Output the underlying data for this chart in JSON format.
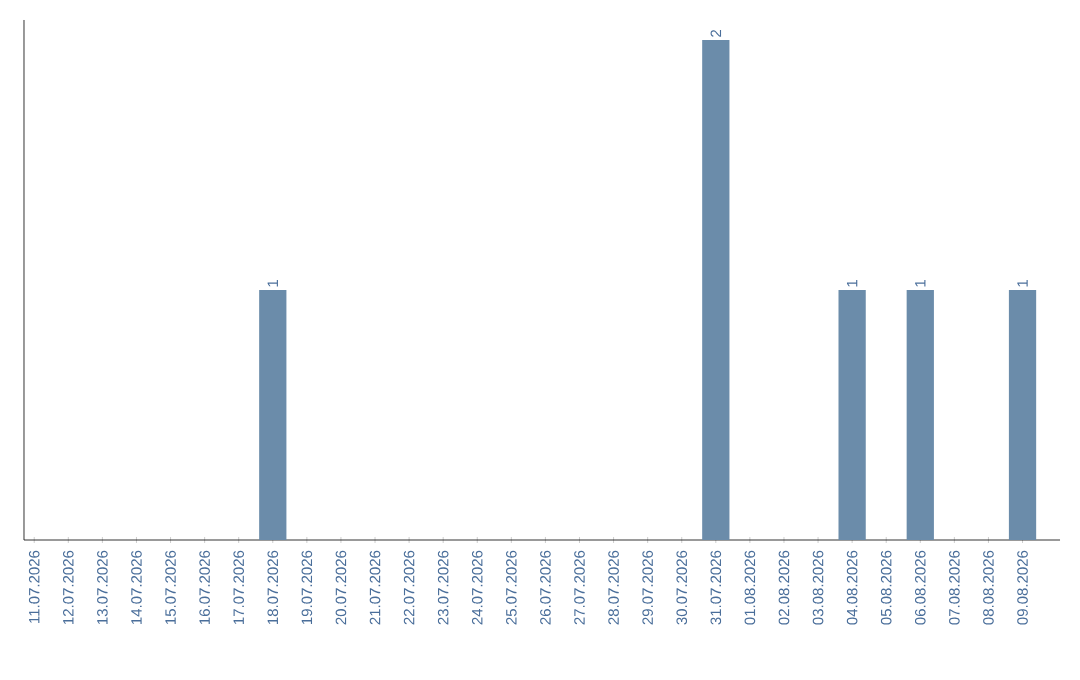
{
  "chart_data": {
    "type": "bar",
    "categories": [
      "11.07.2026",
      "12.07.2026",
      "13.07.2026",
      "14.07.2026",
      "15.07.2026",
      "16.07.2026",
      "17.07.2026",
      "18.07.2026",
      "19.07.2026",
      "20.07.2026",
      "21.07.2026",
      "22.07.2026",
      "23.07.2026",
      "24.07.2026",
      "25.07.2026",
      "26.07.2026",
      "27.07.2026",
      "28.07.2026",
      "29.07.2026",
      "30.07.2026",
      "31.07.2026",
      "01.08.2026",
      "02.08.2026",
      "03.08.2026",
      "04.08.2026",
      "05.08.2026",
      "06.08.2026",
      "07.08.2026",
      "08.08.2026",
      "09.08.2026"
    ],
    "values": [
      0,
      0,
      0,
      0,
      0,
      0,
      0,
      1,
      0,
      0,
      0,
      0,
      0,
      0,
      0,
      0,
      0,
      0,
      0,
      0,
      2,
      0,
      0,
      0,
      1,
      0,
      1,
      0,
      0,
      1
    ],
    "value_labels": [
      null,
      null,
      null,
      null,
      null,
      null,
      null,
      "1",
      null,
      null,
      null,
      null,
      null,
      null,
      null,
      null,
      null,
      null,
      null,
      null,
      "2",
      null,
      null,
      null,
      "1",
      null,
      "1",
      null,
      null,
      "1"
    ],
    "color": "#6b8caa",
    "ylim": [
      0,
      2.08
    ],
    "tick_labels": "x",
    "grid": false
  }
}
